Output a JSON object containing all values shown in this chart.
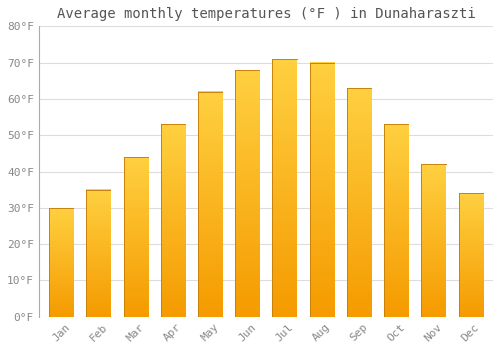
{
  "title": "Average monthly temperatures (°F ) in Dunaharaszti",
  "months": [
    "Jan",
    "Feb",
    "Mar",
    "Apr",
    "May",
    "Jun",
    "Jul",
    "Aug",
    "Sep",
    "Oct",
    "Nov",
    "Dec"
  ],
  "values": [
    30,
    35,
    44,
    53,
    62,
    68,
    71,
    70,
    63,
    53,
    42,
    34
  ],
  "bar_color_light": "#FFD040",
  "bar_color_dark": "#F59B00",
  "bar_edge_color": "#C8820A",
  "ylim": [
    0,
    80
  ],
  "yticks": [
    0,
    10,
    20,
    30,
    40,
    50,
    60,
    70,
    80
  ],
  "background_color": "#FFFFFF",
  "plot_bg_color": "#FFFFFF",
  "grid_color": "#DDDDDD",
  "title_fontsize": 10,
  "tick_fontsize": 8,
  "title_color": "#555555",
  "tick_color": "#888888"
}
